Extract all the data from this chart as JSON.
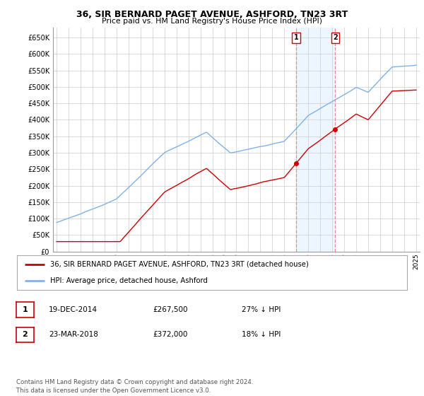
{
  "title": "36, SIR BERNARD PAGET AVENUE, ASHFORD, TN23 3RT",
  "subtitle": "Price paid vs. HM Land Registry's House Price Index (HPI)",
  "ylabel_ticks": [
    "£0",
    "£50K",
    "£100K",
    "£150K",
    "£200K",
    "£250K",
    "£300K",
    "£350K",
    "£400K",
    "£450K",
    "£500K",
    "£550K",
    "£600K",
    "£650K"
  ],
  "ytick_values": [
    0,
    50000,
    100000,
    150000,
    200000,
    250000,
    300000,
    350000,
    400000,
    450000,
    500000,
    550000,
    600000,
    650000
  ],
  "ylim": [
    0,
    680000
  ],
  "sale1_date_num": 2015.0,
  "sale1_price": 267500,
  "sale1_label": "1",
  "sale2_date_num": 2018.25,
  "sale2_price": 372000,
  "sale2_label": "2",
  "hpi_color": "#7fb3e8",
  "price_color": "#cc0000",
  "highlight_color": "#ddeeff",
  "highlight_alpha": 0.5,
  "vline_color": "#ee8888",
  "legend_line1": "36, SIR BERNARD PAGET AVENUE, ASHFORD, TN23 3RT (detached house)",
  "legend_line2": "HPI: Average price, detached house, Ashford",
  "table_row1": [
    "1",
    "19-DEC-2014",
    "£267,500",
    "27% ↓ HPI"
  ],
  "table_row2": [
    "2",
    "23-MAR-2018",
    "£372,000",
    "18% ↓ HPI"
  ],
  "footnote": "Contains HM Land Registry data © Crown copyright and database right 2024.\nThis data is licensed under the Open Government Licence v3.0.",
  "background_color": "#ffffff",
  "box_edge_color": "#cc0000",
  "grid_color": "#cccccc",
  "xlim_left": 1994.7,
  "xlim_right": 2025.3
}
